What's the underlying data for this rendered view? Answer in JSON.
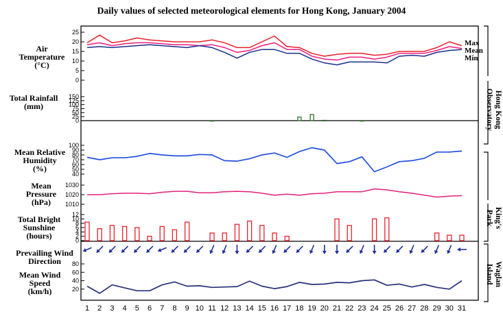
{
  "title": "Daily values of selected meteorological elements for Hong Kong, January 2004",
  "stations": [
    "Hong Kong Observatory",
    "King's Park",
    "Waglan Island"
  ],
  "colors": {
    "max": "#e8202a",
    "mean": "#ee1b7e",
    "min": "#1b2f8a",
    "rh": "#1f4fe0",
    "pressure": "#e0207a",
    "rain": "#2a6e2a",
    "sunshine": "#e8202a",
    "arrow": "#1f2f99",
    "wind": "#26307a"
  },
  "days": [
    1,
    2,
    3,
    4,
    5,
    6,
    7,
    8,
    9,
    10,
    11,
    12,
    13,
    14,
    15,
    16,
    17,
    18,
    19,
    20,
    21,
    22,
    23,
    24,
    25,
    26,
    27,
    28,
    29,
    30,
    31
  ],
  "chart_data": [
    {
      "type": "line",
      "ylabel": "Air Temperature (°C)",
      "ylim": [
        0,
        25
      ],
      "series": [
        {
          "name": "Max",
          "values": [
            19.5,
            23.5,
            19.5,
            20.5,
            22,
            21,
            20.5,
            20,
            20,
            20,
            21,
            19.5,
            17,
            17,
            20,
            23,
            17.5,
            17,
            14,
            12.5,
            13.5,
            14,
            14,
            13,
            13.5,
            15,
            15,
            15,
            17,
            20,
            18
          ]
        },
        {
          "name": "Mean",
          "values": [
            18.5,
            19.5,
            18,
            19,
            19.5,
            19.5,
            19,
            18.5,
            18.5,
            18,
            18.5,
            17,
            14.5,
            15.5,
            18,
            19.5,
            16,
            16,
            12.5,
            11,
            10.5,
            12,
            12,
            11,
            12,
            14,
            14,
            14,
            15.5,
            17.5,
            16.5
          ]
        },
        {
          "name": "Min",
          "values": [
            17,
            17.5,
            17,
            17.5,
            18,
            18.5,
            18,
            17.5,
            17,
            18,
            17,
            14.5,
            11.5,
            14.5,
            16,
            16,
            14,
            14,
            11,
            9,
            8,
            9.5,
            9.5,
            9.5,
            9,
            12.5,
            13,
            12.5,
            14.5,
            15.5,
            16
          ]
        }
      ]
    },
    {
      "type": "bar",
      "ylabel": "Total Rainfall (mm)",
      "ylim": [
        0,
        150
      ],
      "values": [
        0,
        0,
        0,
        0,
        0,
        0,
        0,
        0,
        0,
        0,
        0.5,
        0,
        0,
        0,
        0,
        0,
        0,
        22,
        38,
        2,
        0,
        0,
        0.5,
        0,
        0,
        0,
        0,
        0,
        0,
        0,
        0
      ]
    },
    {
      "type": "line",
      "ylabel": "Mean Relative Humidity (%)",
      "ylim": [
        40,
        100
      ],
      "values": [
        75,
        70,
        74,
        74,
        77,
        83,
        80,
        78,
        78,
        81,
        80,
        68,
        67,
        72,
        80,
        84,
        75,
        87,
        95,
        90,
        62,
        66,
        76,
        45,
        55,
        66,
        68,
        73,
        86,
        86,
        88
      ]
    },
    {
      "type": "line",
      "ylabel": "Mean Pressure (hPa)",
      "ylim": [
        1010,
        1030
      ],
      "values": [
        1020,
        1020,
        1021,
        1021.5,
        1021.5,
        1021,
        1022.5,
        1023.5,
        1023.5,
        1022,
        1022,
        1023,
        1023.5,
        1023,
        1021.5,
        1019.5,
        1020.5,
        1019.5,
        1021,
        1021.5,
        1023,
        1023,
        1023,
        1026,
        1025,
        1023,
        1021.5,
        1019.5,
        1017.5,
        1018.5,
        1019
      ]
    },
    {
      "type": "bar",
      "ylabel": "Total Bright Sunshine (hours)",
      "ylim": [
        0,
        12
      ],
      "values": [
        8.5,
        5.5,
        7,
        6.5,
        6,
        2,
        6.5,
        5,
        8.5,
        0,
        3.5,
        3.5,
        7.5,
        9,
        7,
        3.5,
        2,
        0,
        0,
        0,
        10,
        7,
        0,
        10,
        10.5,
        0,
        0,
        0,
        3.5,
        2.5,
        2.5
      ]
    },
    {
      "type": "table",
      "ylabel": "Prevailing Wind Direction",
      "values": [
        "ENE",
        "NE",
        "NE",
        "NE",
        "NE",
        "NE",
        "ENE",
        "NE",
        "NE",
        "NE",
        "NNE",
        "NNE",
        "N",
        "NE",
        "NE",
        "NNE",
        "NE",
        "NE",
        "NNE",
        "N",
        "N",
        "NE",
        "NNE",
        "N",
        "NE",
        "NE",
        "NNE",
        "NE",
        "NNE",
        "NNE",
        "E"
      ]
    },
    {
      "type": "line",
      "ylabel": "Mean Wind Speed (km/h)",
      "ylim": [
        0,
        80
      ],
      "values": [
        27,
        10,
        30,
        23,
        16,
        16,
        30,
        37,
        27,
        28,
        24,
        25,
        26,
        39,
        27,
        21,
        26,
        36,
        31,
        32,
        36,
        35,
        40,
        42,
        29,
        32,
        25,
        31,
        24,
        20,
        40
      ]
    }
  ],
  "labels": {
    "temp": [
      "Air",
      "Temperature",
      "(°C)"
    ],
    "rain": [
      "Total Rainfall",
      "(mm)"
    ],
    "rh": [
      "Mean Relative",
      "Humidity",
      "(%)"
    ],
    "pres": [
      "Mean",
      "Pressure",
      "(hPa)"
    ],
    "sun": [
      "Total Bright",
      "Sunshine",
      "(hours)"
    ],
    "wdir": [
      "Prevailing Wind",
      "Direction"
    ],
    "wspd": [
      "Mean Wind",
      "Speed",
      "(km/h)"
    ]
  },
  "legend": [
    "Max",
    "Mean",
    "Min"
  ]
}
